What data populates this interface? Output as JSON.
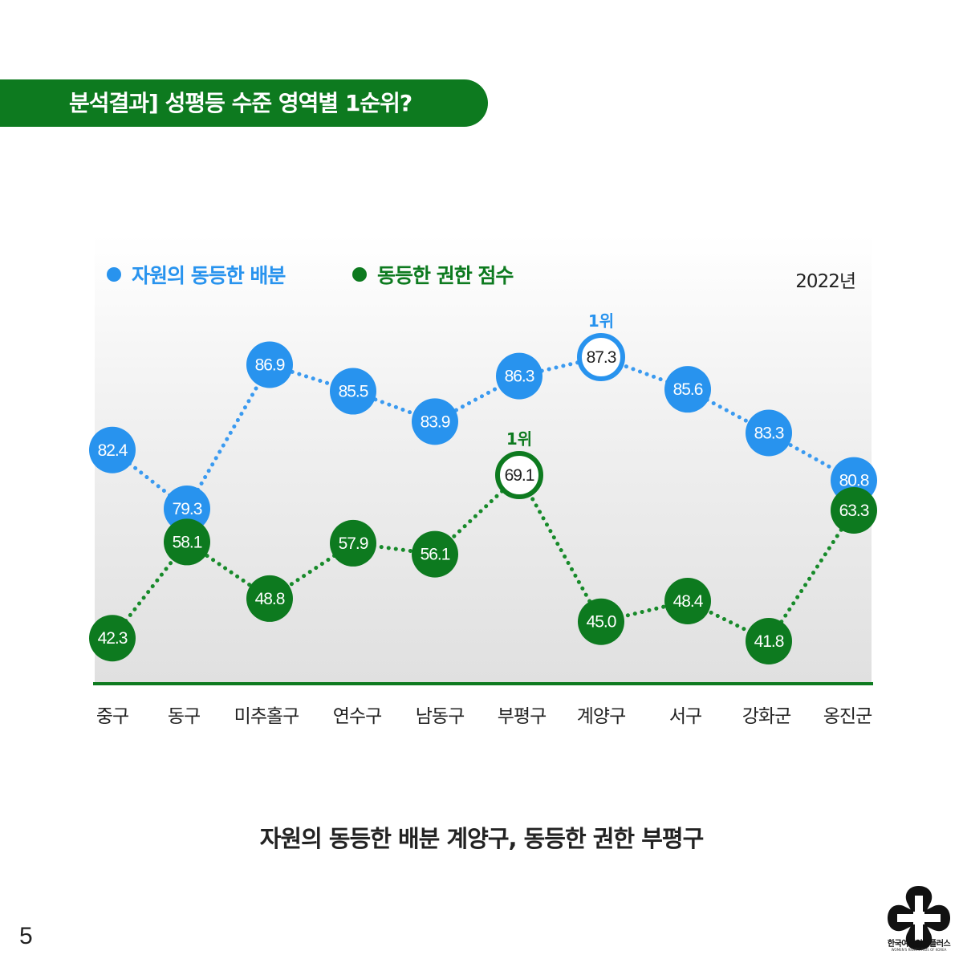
{
  "header": {
    "title": "분석결과] 성평등 수준 영역별 1순위?"
  },
  "chart_data": {
    "type": "line",
    "year_label": "2022년",
    "categories": [
      "중구",
      "동구",
      "미추홀구",
      "연수구",
      "남동구",
      "부평구",
      "계양구",
      "서구",
      "강화군",
      "옹진군"
    ],
    "series": [
      {
        "name": "자원의 동등한 배분",
        "color": "#2893ee",
        "values": [
          82.4,
          79.3,
          86.9,
          85.5,
          83.9,
          86.3,
          87.3,
          85.6,
          83.3,
          80.8
        ],
        "top_index": 6,
        "top_label": "1위"
      },
      {
        "name": "동등한 권한 점수",
        "color": "#0d7a1f",
        "values": [
          42.3,
          58.1,
          48.8,
          57.9,
          56.1,
          69.1,
          45.0,
          48.4,
          41.8,
          63.3
        ],
        "top_index": 5,
        "top_label": "1위"
      }
    ]
  },
  "caption": "자원의 동등한 배분 계양구, 동등한 권한 부평구",
  "page_number": "5",
  "logo": {
    "name": "한국여성인권플러스",
    "subtitle": "WOMEN'S RIGHTS PLUS OF KOREA"
  }
}
